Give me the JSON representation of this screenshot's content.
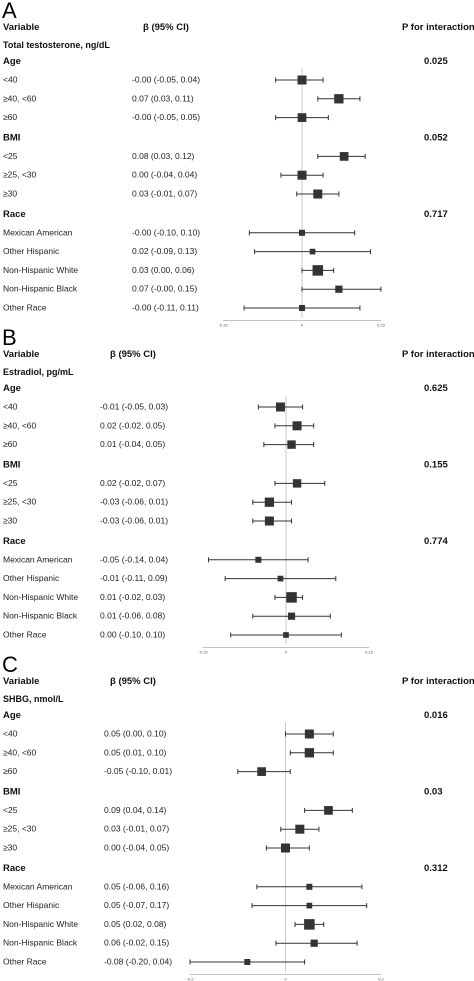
{
  "headers": {
    "variable": "Variable",
    "beta": "β (95% CI)",
    "p": "P for interaction"
  },
  "chart_data": [
    {
      "type": "forest",
      "panel": "A",
      "subtitle": "Total testosterone, ng/dL",
      "xlim": [
        -0.15,
        0.15
      ],
      "ticks": [
        "-0.15",
        "0",
        "0.15"
      ],
      "groups": [
        {
          "label": "Age",
          "p": "0.025",
          "rows": [
            {
              "label": "<40",
              "est": -0.0,
              "lo": -0.05,
              "hi": 0.04,
              "text": "-0.00 (-0.05, 0.04)",
              "weight": 1.0
            },
            {
              "label": "≥40, <60",
              "est": 0.07,
              "lo": 0.03,
              "hi": 0.11,
              "text": "0.07 (0.03, 0.11)",
              "weight": 1.05
            },
            {
              "label": "≥60",
              "est": -0.0,
              "lo": -0.05,
              "hi": 0.05,
              "text": "-0.00 (-0.05, 0.05)",
              "weight": 0.95
            }
          ]
        },
        {
          "label": "BMI",
          "p": "0.052",
          "rows": [
            {
              "label": "<25",
              "est": 0.08,
              "lo": 0.03,
              "hi": 0.12,
              "text": "0.08 (0.03, 0.12)",
              "weight": 0.95
            },
            {
              "label": "≥25, <30",
              "est": 0.0,
              "lo": -0.04,
              "hi": 0.04,
              "text": "0.00 (-0.04, 0.04)",
              "weight": 1.0
            },
            {
              "label": "≥30",
              "est": 0.03,
              "lo": -0.01,
              "hi": 0.07,
              "text": "0.03 (-0.01, 0.07)",
              "weight": 1.0
            }
          ]
        },
        {
          "label": "Race",
          "p": "0.717",
          "rows": [
            {
              "label": "Mexican American",
              "est": -0.0,
              "lo": -0.1,
              "hi": 0.1,
              "text": "-0.00 (-0.10, 0.10)",
              "weight": 0.5
            },
            {
              "label": "Other Hispanic",
              "est": 0.02,
              "lo": -0.09,
              "hi": 0.13,
              "text": "0.02 (-0.09, 0.13)",
              "weight": 0.45
            },
            {
              "label": "Non-Hispanic White",
              "est": 0.03,
              "lo": 0.0,
              "hi": 0.06,
              "text": "0.03 (0.00, 0.06)",
              "weight": 1.25
            },
            {
              "label": "Non-Hispanic Black",
              "est": 0.07,
              "lo": -0.0,
              "hi": 0.15,
              "text": "0.07 (-0.00, 0.15)",
              "weight": 0.7
            },
            {
              "label": "Other Race",
              "est": -0.0,
              "lo": -0.11,
              "hi": 0.11,
              "text": "-0.00 (-0.11, 0.11)",
              "weight": 0.5
            }
          ]
        }
      ]
    },
    {
      "type": "forest",
      "panel": "B",
      "subtitle": "Estradiol, pg/mL",
      "xlim": [
        -0.15,
        0.15
      ],
      "ticks": [
        "-0.15",
        "0",
        "0.15"
      ],
      "groups": [
        {
          "label": "Age",
          "p": "0.625",
          "rows": [
            {
              "label": "<40",
              "est": -0.01,
              "lo": -0.05,
              "hi": 0.03,
              "text": "-0.01 (-0.05, 0.03)",
              "weight": 1.0
            },
            {
              "label": "≥40, <60",
              "est": 0.02,
              "lo": -0.02,
              "hi": 0.05,
              "text": "0.02 (-0.02, 0.05)",
              "weight": 1.0
            },
            {
              "label": "≥60",
              "est": 0.01,
              "lo": -0.04,
              "hi": 0.05,
              "text": "0.01 (-0.04, 0.05)",
              "weight": 0.9
            }
          ]
        },
        {
          "label": "BMI",
          "p": "0.155",
          "rows": [
            {
              "label": "<25",
              "est": 0.02,
              "lo": -0.02,
              "hi": 0.07,
              "text": "0.02 (-0.02, 0.07)",
              "weight": 0.9
            },
            {
              "label": "≥25, <30",
              "est": -0.03,
              "lo": -0.06,
              "hi": 0.01,
              "text": "-0.03 (-0.06, 0.01)",
              "weight": 1.05
            },
            {
              "label": "≥30",
              "est": -0.03,
              "lo": -0.06,
              "hi": 0.01,
              "text": "-0.03 (-0.06, 0.01)",
              "weight": 1.0
            }
          ]
        },
        {
          "label": "Race",
          "p": "0.774",
          "rows": [
            {
              "label": "Mexican American",
              "est": -0.05,
              "lo": -0.14,
              "hi": 0.04,
              "text": "-0.05 (-0.14, 0.04)",
              "weight": 0.5
            },
            {
              "label": "Other Hispanic",
              "est": -0.01,
              "lo": -0.11,
              "hi": 0.09,
              "text": "-0.01 (-0.11, 0.09)",
              "weight": 0.45
            },
            {
              "label": "Non-Hispanic White",
              "est": 0.01,
              "lo": -0.02,
              "hi": 0.03,
              "text": "0.01 (-0.02, 0.03)",
              "weight": 1.25
            },
            {
              "label": "Non-Hispanic Black",
              "est": 0.01,
              "lo": -0.06,
              "hi": 0.08,
              "text": "0.01 (-0.06, 0.08)",
              "weight": 0.7
            },
            {
              "label": "Other Race",
              "est": 0.0,
              "lo": -0.1,
              "hi": 0.1,
              "text": "0.00 (-0.10, 0.10)",
              "weight": 0.45
            }
          ]
        }
      ]
    },
    {
      "type": "forest",
      "panel": "C",
      "subtitle": "SHBG, nmol/L",
      "xlim": [
        -0.2,
        0.2
      ],
      "ticks": [
        "-0.2",
        "0",
        "0.2"
      ],
      "groups": [
        {
          "label": "Age",
          "p": "0.016",
          "rows": [
            {
              "label": "<40",
              "est": 0.05,
              "lo": 0.0,
              "hi": 0.1,
              "text": "0.05 (0.00, 0.10)",
              "weight": 1.0
            },
            {
              "label": "≥40, <60",
              "est": 0.05,
              "lo": 0.01,
              "hi": 0.1,
              "text": "0.05 (0.01, 0.10)",
              "weight": 1.05
            },
            {
              "label": "≥60",
              "est": -0.05,
              "lo": -0.1,
              "hi": 0.01,
              "text": "-0.05 (-0.10, 0.01)",
              "weight": 0.95
            }
          ]
        },
        {
          "label": "BMI",
          "p": "0.03",
          "rows": [
            {
              "label": "<25",
              "est": 0.09,
              "lo": 0.04,
              "hi": 0.14,
              "text": "0.09 (0.04, 0.14)",
              "weight": 0.95
            },
            {
              "label": "≥25, <30",
              "est": 0.03,
              "lo": -0.01,
              "hi": 0.07,
              "text": "0.03 (-0.01, 0.07)",
              "weight": 1.0
            },
            {
              "label": "≥30",
              "est": 0.0,
              "lo": -0.04,
              "hi": 0.05,
              "text": "0.00 (-0.04, 0.05)",
              "weight": 1.0
            }
          ]
        },
        {
          "label": "Race",
          "p": "0.312",
          "rows": [
            {
              "label": "Mexican American",
              "est": 0.05,
              "lo": -0.06,
              "hi": 0.16,
              "text": "0.05 (-0.06, 0.16)",
              "weight": 0.5
            },
            {
              "label": "Other Hispanic",
              "est": 0.05,
              "lo": -0.07,
              "hi": 0.17,
              "text": "0.05 (-0.07, 0.17)",
              "weight": 0.45
            },
            {
              "label": "Non-Hispanic White",
              "est": 0.05,
              "lo": 0.02,
              "hi": 0.08,
              "text": "0.05 (0.02, 0.08)",
              "weight": 1.25
            },
            {
              "label": "Non-Hispanic Black",
              "est": 0.06,
              "lo": -0.02,
              "hi": 0.15,
              "text": "0.06 (-0.02, 0.15)",
              "weight": 0.7
            },
            {
              "label": "Other Race",
              "est": -0.08,
              "lo": -0.2,
              "hi": 0.04,
              "text": "-0.08 (-0.20, 0.04)",
              "weight": 0.5
            }
          ]
        }
      ]
    }
  ]
}
